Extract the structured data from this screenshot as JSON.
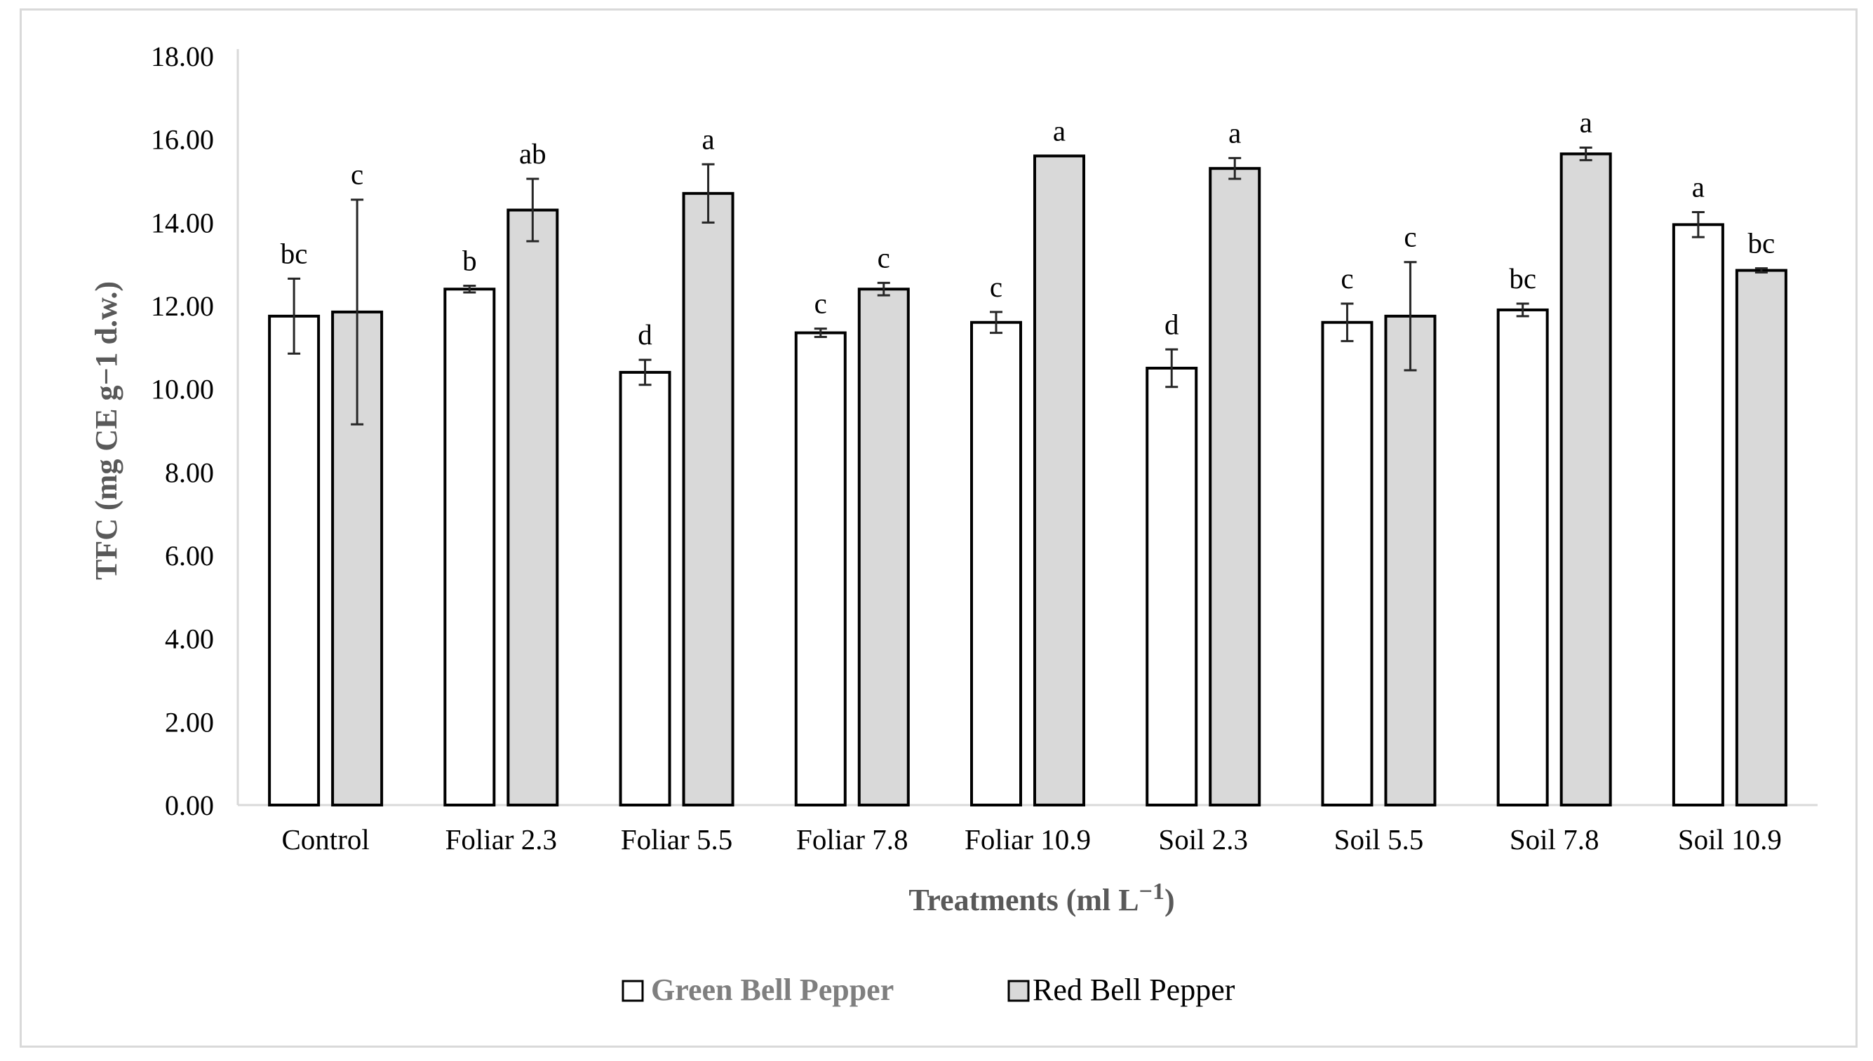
{
  "chart_data": {
    "type": "bar",
    "categories": [
      "Control",
      "Foliar 2.3",
      "Foliar 5.5",
      "Foliar 7.8",
      "Foliar 10.9",
      "Soil 2.3",
      "Soil 5.5",
      "Soil 7.8",
      "Soil 10.9"
    ],
    "series": [
      {
        "name": "Green Bell Pepper",
        "color": "#ffffff",
        "label_color": "#7f7f7f",
        "values": [
          11.75,
          12.4,
          10.4,
          11.35,
          11.6,
          10.5,
          11.6,
          11.9,
          13.95
        ],
        "errors": [
          0.9,
          0.08,
          0.3,
          0.1,
          0.25,
          0.45,
          0.45,
          0.15,
          0.3
        ],
        "significance": [
          "bc",
          "b",
          "d",
          "c",
          "c",
          "d",
          "c",
          "bc",
          "a"
        ]
      },
      {
        "name": "Red Bell Pepper",
        "color": "#d9d9d9",
        "label_color": "#000000",
        "values": [
          11.85,
          14.3,
          14.7,
          12.4,
          15.6,
          15.3,
          11.75,
          15.65,
          12.85
        ],
        "errors": [
          2.7,
          0.75,
          0.7,
          0.15,
          0.0,
          0.25,
          1.3,
          0.15,
          0.05
        ],
        "significance": [
          "c",
          "ab",
          "a",
          "c",
          "a",
          "a",
          "c",
          "a",
          "bc"
        ]
      }
    ],
    "xlabel": "Treatments (ml L",
    "xlabel_sup": "−1",
    "xlabel_end": ")",
    "ylabel": "TFC (mg CE g−1 d.w.)",
    "ylim": [
      0,
      18
    ],
    "yticks": [
      "0.00",
      "2.00",
      "4.00",
      "6.00",
      "8.00",
      "10.00",
      "12.00",
      "14.00",
      "16.00",
      "18.00"
    ],
    "legend_position": "bottom",
    "grid": false
  }
}
